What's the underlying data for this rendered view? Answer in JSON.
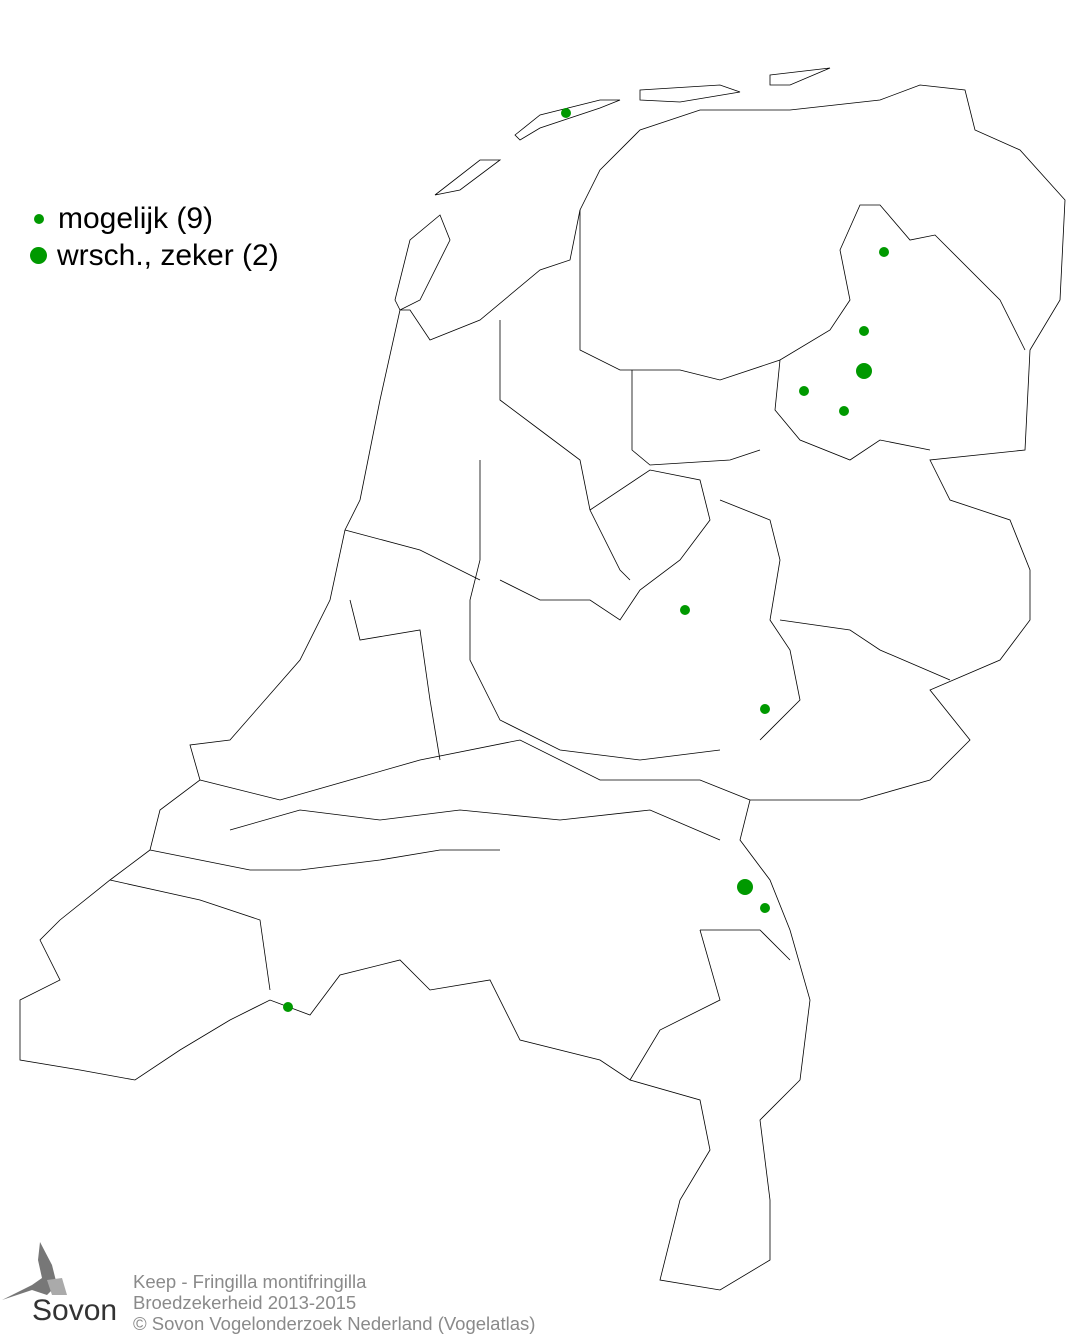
{
  "legend": {
    "items": [
      {
        "label": "mogelijk (9)",
        "category": "mogelijk",
        "count": 9,
        "color": "#009900"
      },
      {
        "label": "wrsch., zeker (2)",
        "category": "wrsch., zeker",
        "count": 2,
        "color": "#009900"
      }
    ]
  },
  "footer": {
    "line1": "Keep - Fringilla montifringilla",
    "line2": "Broedzekerheid 2013-2015",
    "line3": "© Sovon Vogelonderzoek Nederland (Vogelatlas)"
  },
  "logo": {
    "text": "Sovon"
  },
  "colors": {
    "points": "#009900",
    "boundaries": "#000000",
    "footer_text": "#8a8a8a"
  }
}
